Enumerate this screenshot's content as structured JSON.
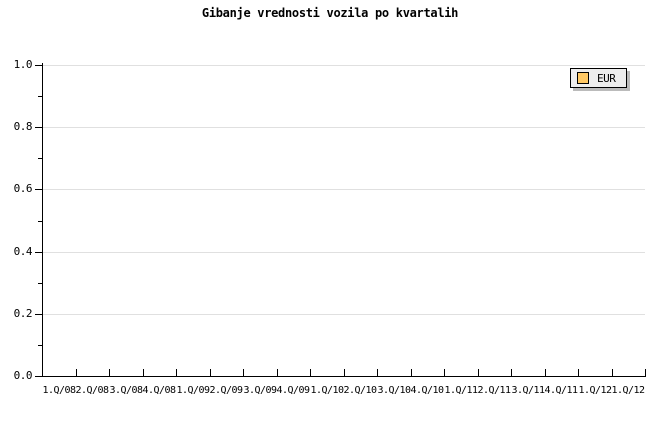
{
  "chart_data": {
    "type": "bar",
    "title": "Gibanje vrednosti vozila po kvartalih",
    "xlabel": "",
    "ylabel": "",
    "categories": [
      "1.Q/08",
      "2.Q/08",
      "3.Q/08",
      "4.Q/08",
      "1.Q/09",
      "2.Q/09",
      "3.Q/09",
      "4.Q/09",
      "1.Q/10",
      "2.Q/10",
      "3.Q/10",
      "4.Q/10",
      "1.Q/11",
      "2.Q/11",
      "3.Q/11",
      "4.Q/11",
      "1.Q/12",
      "1.Q/12"
    ],
    "series": [
      {
        "name": "EUR",
        "color": "#FFC965",
        "values": []
      }
    ],
    "ylim": [
      0.0,
      1.0
    ],
    "y_major_ticks": [
      0.0,
      0.2,
      0.4,
      0.6,
      0.8,
      1.0
    ],
    "y_tick_labels": [
      "0.0",
      "0.2",
      "0.4",
      "0.6",
      "0.8",
      "1.0"
    ],
    "y_minor_tick_step": 0.1,
    "grid": "horizontal-major",
    "legend_position": "top-right",
    "plot_is_empty": true
  },
  "legend": {
    "items": [
      {
        "label": "EUR",
        "color": "#FFC965"
      }
    ]
  },
  "colors": {
    "background": "#FFFFFF",
    "text": "#000000",
    "axis": "#000000",
    "gridline": "#E0E0E0",
    "legend_background": "#EDEDED",
    "legend_border": "#000000",
    "legend_shadow": "#BBBBBB",
    "series_eur": "#FFC965"
  }
}
